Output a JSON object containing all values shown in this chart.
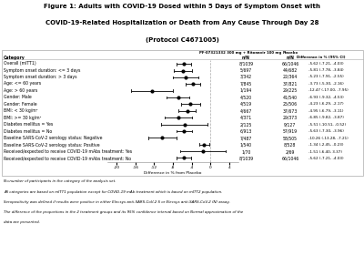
{
  "title_line1": "Figure 1: Adults with COVID-19 Dosed within 5 Days of Symptom Onset with",
  "title_line2": "COVID-19-Related Hospitalization or Death from Any Cause Through Day 28",
  "title_line3": "(Protocol C4671005)",
  "xlabel": "Difference in % from Placebo",
  "rows": [
    {
      "label": "Overall (mITT1)",
      "estimate": -5.62,
      "ci_low": -7.21,
      "ci_high": -4.03,
      "trt": "8/1039",
      "plc": "66/1046",
      "ci_text": "-5.62 (-7.21, -4.03)"
    },
    {
      "label": "Symptom onset duration: <= 3 days",
      "estimate": -5.81,
      "ci_low": -7.78,
      "ci_high": -3.84,
      "trt": "5/697",
      "plc": "44/682",
      "ci_text": "-5.81 (-7.78, -3.84)"
    },
    {
      "label": "Symptom onset duration: > 3 days",
      "estimate": -5.23,
      "ci_low": -7.91,
      "ci_high": -2.55,
      "trt": "3/342",
      "plc": "22/364",
      "ci_text": "-5.23 (-7.91, -2.55)"
    },
    {
      "label": "Age: <= 60 years",
      "estimate": -3.73,
      "ci_low": -5.3,
      "ci_high": -2.16,
      "trt": "7/845",
      "plc": "37/821",
      "ci_text": "-3.73 (-5.30, -2.16)"
    },
    {
      "label": "Age: > 60 years",
      "estimate": -12.47,
      "ci_low": -17.0,
      "ci_high": -7.95,
      "trt": "1/194",
      "plc": "29/225",
      "ci_text": "-12.47 (-17.00, -7.95)"
    },
    {
      "label": "Gender: Male",
      "estimate": -6.93,
      "ci_low": -9.32,
      "ci_high": -4.53,
      "trt": "4/520",
      "plc": "41/540",
      "ci_text": "-6.93 (-9.32, -4.53)"
    },
    {
      "label": "Gender: Female",
      "estimate": -4.23,
      "ci_low": -6.29,
      "ci_high": -2.17,
      "trt": "4/519",
      "plc": "25/506",
      "ci_text": "-4.23 (-6.29, -2.17)"
    },
    {
      "label": "BMI: < 30 kg/m²",
      "estimate": -4.95,
      "ci_low": -6.79,
      "ci_high": -3.11,
      "trt": "4/667",
      "plc": "37/673",
      "ci_text": "-4.95 (-6.79, -3.11)"
    },
    {
      "label": "BMI: >= 30 kg/m²",
      "estimate": -6.85,
      "ci_low": -9.82,
      "ci_high": -3.87,
      "trt": "4/371",
      "plc": "29/373",
      "ci_text": "-6.85 (-9.82, -3.87)"
    },
    {
      "label": "Diabetes mellitus = Yes",
      "estimate": -5.51,
      "ci_low": -10.51,
      "ci_high": -0.52,
      "trt": "2/125",
      "plc": "9/127",
      "ci_text": "-5.51 (-10.51, -0.52)"
    },
    {
      "label": "Diabetes mellitus = No",
      "estimate": -5.63,
      "ci_low": -7.3,
      "ci_high": -3.96,
      "trt": "6/913",
      "plc": "57/919",
      "ci_text": "-5.63 (-7.30, -3.96)"
    },
    {
      "label": "Baseline SARS-CoV-2 serology status: Negative",
      "estimate": -10.26,
      "ci_low": -13.28,
      "ci_high": -7.21,
      "trt": "7/487",
      "plc": "58/505",
      "ci_text": "-10.26 (-13.28, -7.21)"
    },
    {
      "label": "Baseline SARS-CoV-2 serology status: Positive",
      "estimate": -1.34,
      "ci_low": -2.45,
      "ci_high": -0.23,
      "trt": "1/540",
      "plc": "8/528",
      "ci_text": "-1.34 (-2.45, -0.23)"
    },
    {
      "label": "Received/expected to receive COVID-19 mAbs treatment: Yes",
      "estimate": -1.51,
      "ci_low": -6.4,
      "ci_high": 3.37,
      "trt": "1/70",
      "plc": "2/69",
      "ci_text": "-1.51 (-6.40, 3.37)"
    },
    {
      "label": "Received/expected to receive COVID-19 mAbs treatment: No",
      "estimate": -5.62,
      "ci_low": -7.21,
      "ci_high": -4.03,
      "trt": "8/1039",
      "plc": "66/1046",
      "ci_text": "-5.62 (-7.21, -4.03)"
    }
  ],
  "xlim": [
    -22,
    6
  ],
  "xticks": [
    -20,
    -16,
    -12,
    -8,
    -4,
    0,
    4
  ],
  "footnotes": [
    "N=number of participants in the category of the analysis set.",
    "All categories are based on mITT1 population except for COVID-19 mAb treatment which is based on mITT2 population.",
    "Seropositivity was defined if results were positive in either Elecsys anti-SARS-CoV-2 S or Elecsys anti-SARS-CoV-2 (N) assay.",
    "The difference of the proportions in the 2 treatment groups and its 95% confidence interval based on Normal approximation of the",
    "data are presented."
  ],
  "hdr_trt": "PF-07321332 300 mg + Ritonavir 100 mg",
  "hdr_trt2": "n/N",
  "hdr_plc": "Placebo",
  "hdr_plc2": "n/N",
  "hdr_diff": "Difference in % (95% CI)",
  "hdr_cat": "Category",
  "bg_color": "#ffffff",
  "border_color": "#aaaaaa",
  "vline_color": "#aaaaaa",
  "marker_color": "#000000",
  "ci_color": "#000000",
  "text_color": "#000000",
  "title_fontsize": 5.0,
  "label_fontsize": 3.3,
  "header_fontsize": 3.3,
  "ci_text_fontsize": 3.0,
  "footnote_fontsize": 2.9
}
